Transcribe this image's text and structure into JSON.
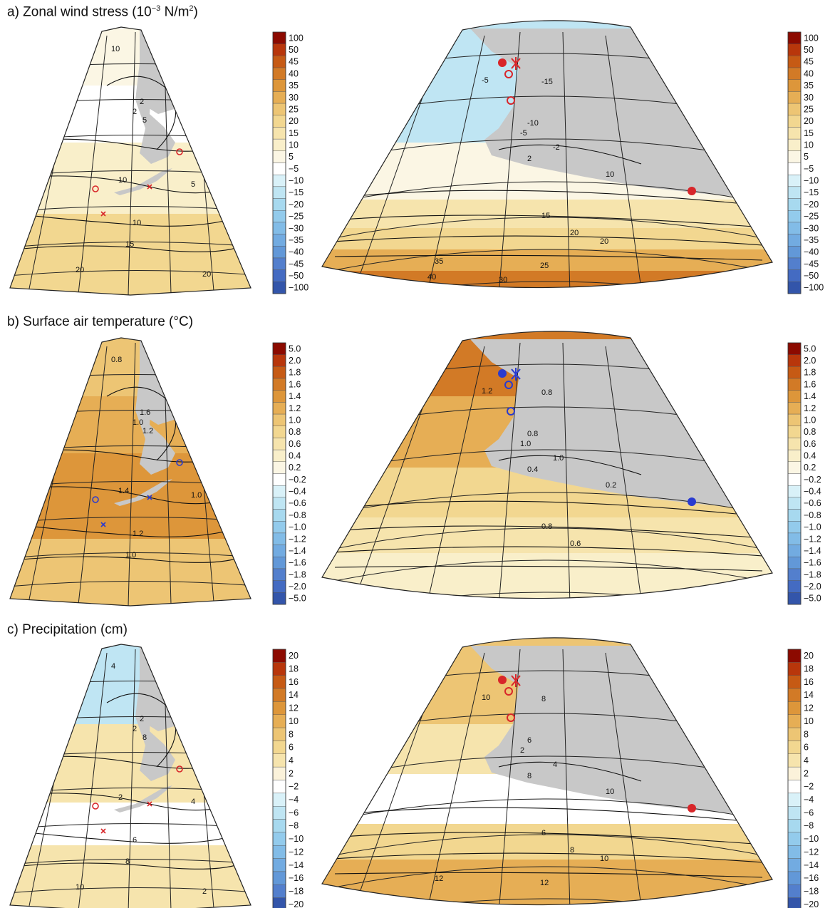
{
  "panels": [
    {
      "id": "a",
      "title_prefix": "a) Zonal wind stress (10",
      "title_exp1": "−3",
      "title_mid": " N/m",
      "title_exp2": "2",
      "title_suffix": ")",
      "colorbar": {
        "labels": [
          "100",
          "50",
          "45",
          "40",
          "35",
          "30",
          "25",
          "20",
          "15",
          "10",
          "5",
          "−5",
          "−10",
          "−15",
          "−20",
          "−25",
          "−30",
          "−35",
          "−40",
          "−45",
          "−50",
          "−100"
        ],
        "colors": [
          "#8c0a00",
          "#b8360b",
          "#c65a14",
          "#d27a26",
          "#dd963a",
          "#e6ae55",
          "#edc574",
          "#f2d790",
          "#f6e4ad",
          "#f9efca",
          "#fbf6e4",
          "#ffffff",
          "#d9f1f8",
          "#bfe5f3",
          "#a7d9ef",
          "#93cbec",
          "#82bce7",
          "#72abe1",
          "#6298d8",
          "#537fcd",
          "#446bc2",
          "#3355aa"
        ]
      },
      "contour_labels_left": [
        "10",
        "2",
        "5",
        "2",
        "10",
        "5",
        "10",
        "15",
        "20",
        "20"
      ],
      "contour_labels_right": [
        "-5",
        "-15",
        "-10",
        "-5",
        "-2",
        "2",
        "10",
        "15",
        "20",
        "20",
        "25",
        "35",
        "30",
        "40"
      ],
      "marker_color": "#d8262a"
    },
    {
      "id": "b",
      "title_prefix": "b) Surface air temperature (°C)",
      "colorbar": {
        "labels": [
          "5.0",
          "2.0",
          "1.8",
          "1.6",
          "1.4",
          "1.2",
          "1.0",
          "0.8",
          "0.6",
          "0.4",
          "0.2",
          "−0.2",
          "−0.4",
          "−0.6",
          "−0.8",
          "−1.0",
          "−1.2",
          "−1.4",
          "−1.6",
          "−1.8",
          "−2.0",
          "−5.0"
        ],
        "colors": [
          "#8c0a00",
          "#b8360b",
          "#c65a14",
          "#d27a26",
          "#dd963a",
          "#e6ae55",
          "#edc574",
          "#f2d790",
          "#f6e4ad",
          "#f9efca",
          "#fbf6e4",
          "#ffffff",
          "#d9f1f8",
          "#bfe5f3",
          "#a7d9ef",
          "#93cbec",
          "#82bce7",
          "#72abe1",
          "#6298d8",
          "#537fcd",
          "#446bc2",
          "#3355aa"
        ]
      },
      "contour_labels_left": [
        "0.8",
        "1.0",
        "1.2",
        "1.6",
        "1.4",
        "1.0",
        "1.2",
        "1.0"
      ],
      "contour_labels_right": [
        "1.2",
        "0.8",
        "0.8",
        "1.0",
        "1.0",
        "0.4",
        "0.2",
        "0.8",
        "0.6"
      ],
      "marker_color": "#2a3bd0"
    },
    {
      "id": "c",
      "title_prefix": "c) Precipitation (cm)",
      "colorbar": {
        "labels": [
          "20",
          "18",
          "16",
          "14",
          "12",
          "10",
          "8",
          "6",
          "4",
          "2",
          "−2",
          "−4",
          "−6",
          "−8",
          "−10",
          "−12",
          "−14",
          "−16",
          "−18",
          "−20"
        ],
        "colors": [
          "#8c0a00",
          "#b8360b",
          "#c65a14",
          "#d27a26",
          "#dd963a",
          "#e6ae55",
          "#edc574",
          "#f2d790",
          "#f6e4ad",
          "#fbf2da",
          "#ffffff",
          "#d9f1f8",
          "#bfe5f3",
          "#a7d9ef",
          "#93cbec",
          "#82bce7",
          "#72abe1",
          "#6298d8",
          "#537fcd",
          "#3355aa"
        ]
      },
      "contour_labels_left": [
        "4",
        "2",
        "8",
        "2",
        "2",
        "4",
        "6",
        "8",
        "10",
        "2"
      ],
      "contour_labels_right": [
        "10",
        "8",
        "6",
        "2",
        "4",
        "8",
        "10",
        "6",
        "8",
        "10",
        "12",
        "12"
      ],
      "marker_color": "#d8262a"
    }
  ],
  "colors": {
    "land": "#c8c8c8",
    "grid": "#222222",
    "contour": "#111111"
  }
}
